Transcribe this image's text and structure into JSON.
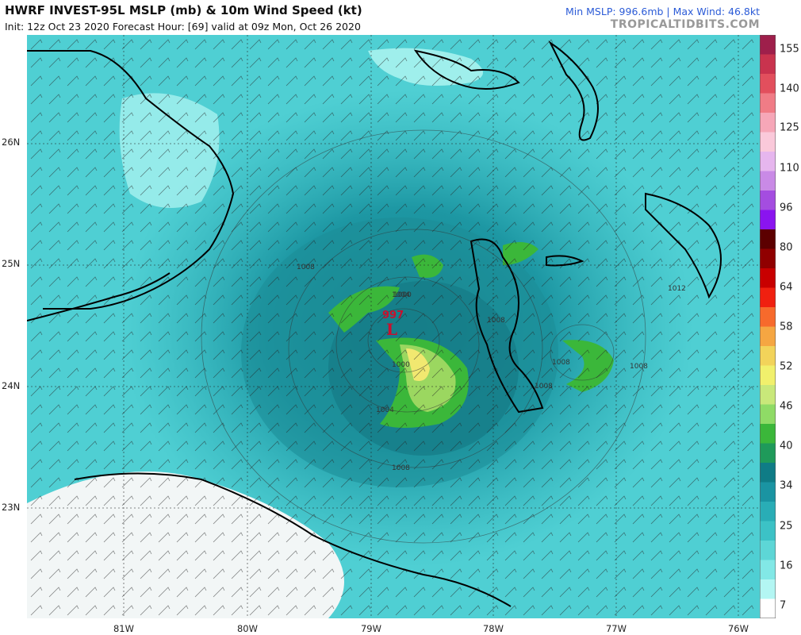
{
  "header": {
    "title": "HWRF INVEST-95L MSLP (mb) & 10m Wind Speed (kt)",
    "subtitle": "Init: 12z Oct 23 2020   Forecast Hour: [69]   valid at 09z Mon, Oct 26 2020",
    "stats": "Min MSLP: 996.6mb | Max Wind: 46.8kt",
    "site": "TROPICALTIDBITS.COM"
  },
  "map": {
    "latitudes": [
      "26N",
      "25N",
      "24N",
      "23N"
    ],
    "longitudes": [
      "81W",
      "80W",
      "79W",
      "78W",
      "77W",
      "76W"
    ],
    "low_value": "997",
    "low_symbol": "L",
    "isobars": [
      "1008",
      "1004",
      "1000",
      "1008",
      "1008",
      "1008",
      "1008",
      "1012",
      "1004",
      "1000",
      "1008"
    ]
  },
  "colorbar": {
    "labels": [
      "155",
      "140",
      "125",
      "110",
      "96",
      "80",
      "64",
      "58",
      "52",
      "46",
      "40",
      "34",
      "25",
      "16",
      "7"
    ],
    "colors": [
      "#9e1f4b",
      "#c9334e",
      "#e24f5d",
      "#f07c86",
      "#f6a7b8",
      "#fac9da",
      "#e6b6ee",
      "#c98ae6",
      "#a44de0",
      "#8a14ef",
      "#5c0000",
      "#900000",
      "#c80000",
      "#f02010",
      "#f76a2c",
      "#f5a642",
      "#f2d35a",
      "#f1f06c",
      "#c9e87a",
      "#8fdb66",
      "#3bb73a",
      "#1f9a5a",
      "#0f7c86",
      "#1a94a2",
      "#29adb6",
      "#3cc2c6",
      "#5dd6d6",
      "#82e8e6",
      "#b3f6f3",
      "#ffffff"
    ]
  }
}
